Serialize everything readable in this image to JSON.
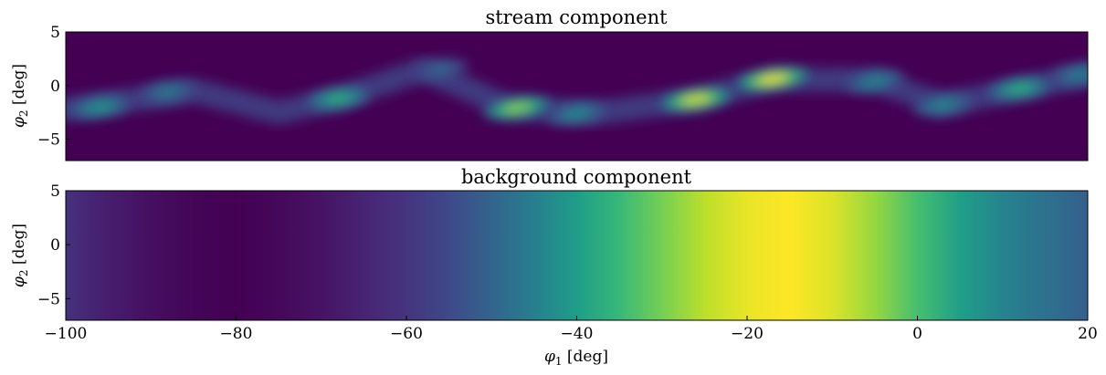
{
  "chart_data": [
    {
      "type": "heatmap",
      "title": "stream component",
      "xlabel": "",
      "ylabel": "φ₂ [deg]",
      "xlim": [
        -100,
        20
      ],
      "ylim": [
        -7,
        5
      ],
      "yticks": [
        5,
        0,
        -5
      ],
      "ytick_labels": [
        "5",
        "0",
        "−5"
      ],
      "show_xticklabels": false,
      "colormap": "viridis",
      "density_peaks": [
        {
          "phi1": -96,
          "phi2": -2.0,
          "amplitude": 0.38
        },
        {
          "phi1": -88,
          "phi2": -0.6,
          "amplitude": 0.22
        },
        {
          "phi1": -68,
          "phi2": -1.2,
          "amplitude": 0.52
        },
        {
          "phi1": -56,
          "phi2": 1.5,
          "amplitude": 0.12
        },
        {
          "phi1": -47,
          "phi2": -2.1,
          "amplitude": 0.78
        },
        {
          "phi1": -40,
          "phi2": -2.6,
          "amplitude": 0.32
        },
        {
          "phi1": -26,
          "phi2": -1.3,
          "amplitude": 0.95
        },
        {
          "phi1": -17,
          "phi2": 0.6,
          "amplitude": 1.0
        },
        {
          "phi1": -5,
          "phi2": 0.4,
          "amplitude": 0.28
        },
        {
          "phi1": 3,
          "phi2": -1.8,
          "amplitude": 0.3
        },
        {
          "phi1": 12,
          "phi2": -0.3,
          "amplitude": 0.52
        },
        {
          "phi1": 19,
          "phi2": 1.0,
          "amplitude": 0.25
        }
      ],
      "track": [
        {
          "phi1": -100,
          "phi2": -2.2
        },
        {
          "phi1": -85,
          "phi2": -0.5
        },
        {
          "phi1": -75,
          "phi2": -2.5
        },
        {
          "phi1": -68,
          "phi2": -1.2
        },
        {
          "phi1": -58,
          "phi2": 1.5
        },
        {
          "phi1": -48,
          "phi2": -2.0
        },
        {
          "phi1": -38,
          "phi2": -2.6
        },
        {
          "phi1": -26,
          "phi2": -1.3
        },
        {
          "phi1": -17,
          "phi2": 0.6
        },
        {
          "phi1": -5,
          "phi2": 0.5
        },
        {
          "phi1": 3,
          "phi2": -1.8
        },
        {
          "phi1": 12,
          "phi2": -0.3
        },
        {
          "phi1": 20,
          "phi2": 1.0
        }
      ]
    },
    {
      "type": "heatmap",
      "title": "background component",
      "xlabel": "φ₁ [deg]",
      "ylabel": "φ₂ [deg]",
      "xlim": [
        -100,
        20
      ],
      "ylim": [
        -7,
        5
      ],
      "xticks": [
        -100,
        -80,
        -60,
        -40,
        -20,
        0,
        20
      ],
      "xtick_labels": [
        "−100",
        "−80",
        "−60",
        "−40",
        "−20",
        "0",
        "20"
      ],
      "yticks": [
        5,
        0,
        -5
      ],
      "ytick_labels": [
        "5",
        "0",
        "−5"
      ],
      "colormap": "viridis",
      "profile": [
        {
          "phi1": -100,
          "value": 0.14
        },
        {
          "phi1": -95,
          "value": 0.08
        },
        {
          "phi1": -90,
          "value": 0.04
        },
        {
          "phi1": -85,
          "value": 0.01
        },
        {
          "phi1": -80,
          "value": 0.0
        },
        {
          "phi1": -75,
          "value": 0.02
        },
        {
          "phi1": -70,
          "value": 0.05
        },
        {
          "phi1": -65,
          "value": 0.1
        },
        {
          "phi1": -60,
          "value": 0.15
        },
        {
          "phi1": -55,
          "value": 0.22
        },
        {
          "phi1": -50,
          "value": 0.32
        },
        {
          "phi1": -45,
          "value": 0.43
        },
        {
          "phi1": -40,
          "value": 0.55
        },
        {
          "phi1": -35,
          "value": 0.67
        },
        {
          "phi1": -30,
          "value": 0.79
        },
        {
          "phi1": -25,
          "value": 0.9
        },
        {
          "phi1": -20,
          "value": 0.97
        },
        {
          "phi1": -15,
          "value": 1.0
        },
        {
          "phi1": -10,
          "value": 0.95
        },
        {
          "phi1": -5,
          "value": 0.84
        },
        {
          "phi1": 0,
          "value": 0.7
        },
        {
          "phi1": 5,
          "value": 0.56
        },
        {
          "phi1": 10,
          "value": 0.45
        },
        {
          "phi1": 15,
          "value": 0.37
        },
        {
          "phi1": 20,
          "value": 0.3
        }
      ]
    }
  ]
}
